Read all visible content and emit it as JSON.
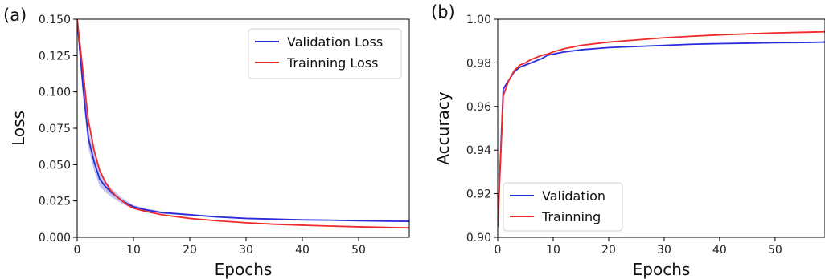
{
  "colors": {
    "validation": "#2b2bd9",
    "training": "#f02a2a",
    "band": "#b4b8ec"
  },
  "chart_data": [
    {
      "panel_label": "(a)",
      "type": "line",
      "xlabel": "Epochs",
      "ylabel": "Loss",
      "xlim": [
        0,
        59
      ],
      "ylim": [
        0,
        0.15
      ],
      "xticks": [
        "0",
        "10",
        "20",
        "30",
        "40",
        "50"
      ],
      "yticks": [
        "0.000",
        "0.025",
        "0.050",
        "0.075",
        "0.100",
        "0.125",
        "0.150"
      ],
      "legend_position": "top-right",
      "band_series": "Validation Loss",
      "series": [
        {
          "name": "Validation Loss",
          "color": "validation",
          "x": [
            0,
            1,
            2,
            3,
            4,
            5,
            6,
            7,
            8,
            9,
            10,
            12,
            15,
            20,
            25,
            30,
            35,
            40,
            45,
            50,
            55,
            59
          ],
          "y": [
            0.15,
            0.105,
            0.068,
            0.052,
            0.04,
            0.035,
            0.031,
            0.028,
            0.025,
            0.023,
            0.021,
            0.019,
            0.017,
            0.0155,
            0.014,
            0.013,
            0.0125,
            0.012,
            0.0118,
            0.0114,
            0.0111,
            0.011
          ],
          "band": [
            0.006,
            0.008,
            0.007,
            0.006,
            0.005,
            0.004,
            0.003,
            0.0025,
            0.002,
            0.0015,
            0.0012,
            0.001,
            0.0008,
            0.0006,
            0.0005,
            0.0004,
            0.0004,
            0.0003,
            0.0003,
            0.0003,
            0.0003,
            0.0003
          ]
        },
        {
          "name": "Trainning Loss",
          "color": "training",
          "x": [
            0,
            1,
            2,
            3,
            4,
            5,
            6,
            7,
            8,
            9,
            10,
            12,
            15,
            20,
            25,
            30,
            35,
            40,
            45,
            50,
            55,
            59
          ],
          "y": [
            0.15,
            0.115,
            0.08,
            0.06,
            0.046,
            0.038,
            0.032,
            0.028,
            0.025,
            0.022,
            0.02,
            0.018,
            0.0155,
            0.013,
            0.0113,
            0.01,
            0.009,
            0.0083,
            0.0077,
            0.0072,
            0.0068,
            0.0065
          ]
        }
      ]
    },
    {
      "panel_label": "(b)",
      "type": "line",
      "xlabel": "Epochs",
      "ylabel": "Accuracy",
      "xlim": [
        0,
        59
      ],
      "ylim": [
        0.9,
        1.0
      ],
      "xticks": [
        "0",
        "10",
        "20",
        "30",
        "40",
        "50"
      ],
      "yticks": [
        "0.90",
        "0.92",
        "0.94",
        "0.96",
        "0.98",
        "1.00"
      ],
      "legend_position": "bottom-left",
      "series": [
        {
          "name": "Validation",
          "color": "validation",
          "x": [
            0,
            1,
            2,
            3,
            4,
            5,
            6,
            7,
            8,
            9,
            10,
            12,
            15,
            20,
            25,
            30,
            35,
            40,
            45,
            50,
            55,
            59
          ],
          "y": [
            0.905,
            0.968,
            0.972,
            0.976,
            0.978,
            0.979,
            0.98,
            0.981,
            0.982,
            0.9835,
            0.984,
            0.985,
            0.986,
            0.987,
            0.9875,
            0.988,
            0.9885,
            0.9888,
            0.989,
            0.9892,
            0.9893,
            0.9895
          ]
        },
        {
          "name": "Trainning",
          "color": "training",
          "x": [
            0,
            1,
            2,
            3,
            4,
            5,
            6,
            7,
            8,
            9,
            10,
            12,
            15,
            20,
            25,
            30,
            35,
            40,
            45,
            50,
            55,
            59
          ],
          "y": [
            0.905,
            0.965,
            0.972,
            0.9765,
            0.979,
            0.98,
            0.9815,
            0.9825,
            0.9835,
            0.984,
            0.985,
            0.9865,
            0.988,
            0.9895,
            0.9905,
            0.9915,
            0.9922,
            0.9928,
            0.9933,
            0.9937,
            0.994,
            0.9942
          ]
        }
      ]
    }
  ]
}
